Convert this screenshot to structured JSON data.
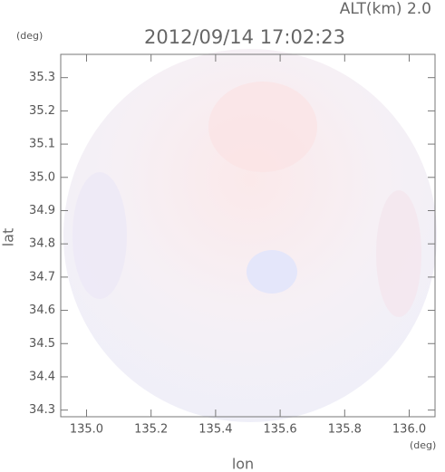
{
  "chart_data": {
    "type": "radar-map",
    "title": "2012/09/14 17:02:23",
    "subtitle": "ALT(km) 2.0",
    "x_label": "lon",
    "y_label": "lat",
    "x_unit": "(deg)",
    "y_unit": "(deg)",
    "xlim": [
      134.92,
      136.08
    ],
    "xticks": [
      {
        "value": 135.0,
        "label": "135.0"
      },
      {
        "value": 135.2,
        "label": "135.2"
      },
      {
        "value": 135.4,
        "label": "135.4"
      },
      {
        "value": 135.6,
        "label": "135.6"
      },
      {
        "value": 135.8,
        "label": "135.8"
      },
      {
        "value": 136.0,
        "label": "136.0"
      }
    ],
    "ylim": [
      34.28,
      35.37
    ],
    "yticks": [
      34.3,
      34.4,
      34.5,
      34.6,
      34.7,
      34.8,
      34.9,
      {
        "value": 35.0,
        "label": "35.0"
      },
      35.1,
      35.2,
      35.3
    ]
  }
}
